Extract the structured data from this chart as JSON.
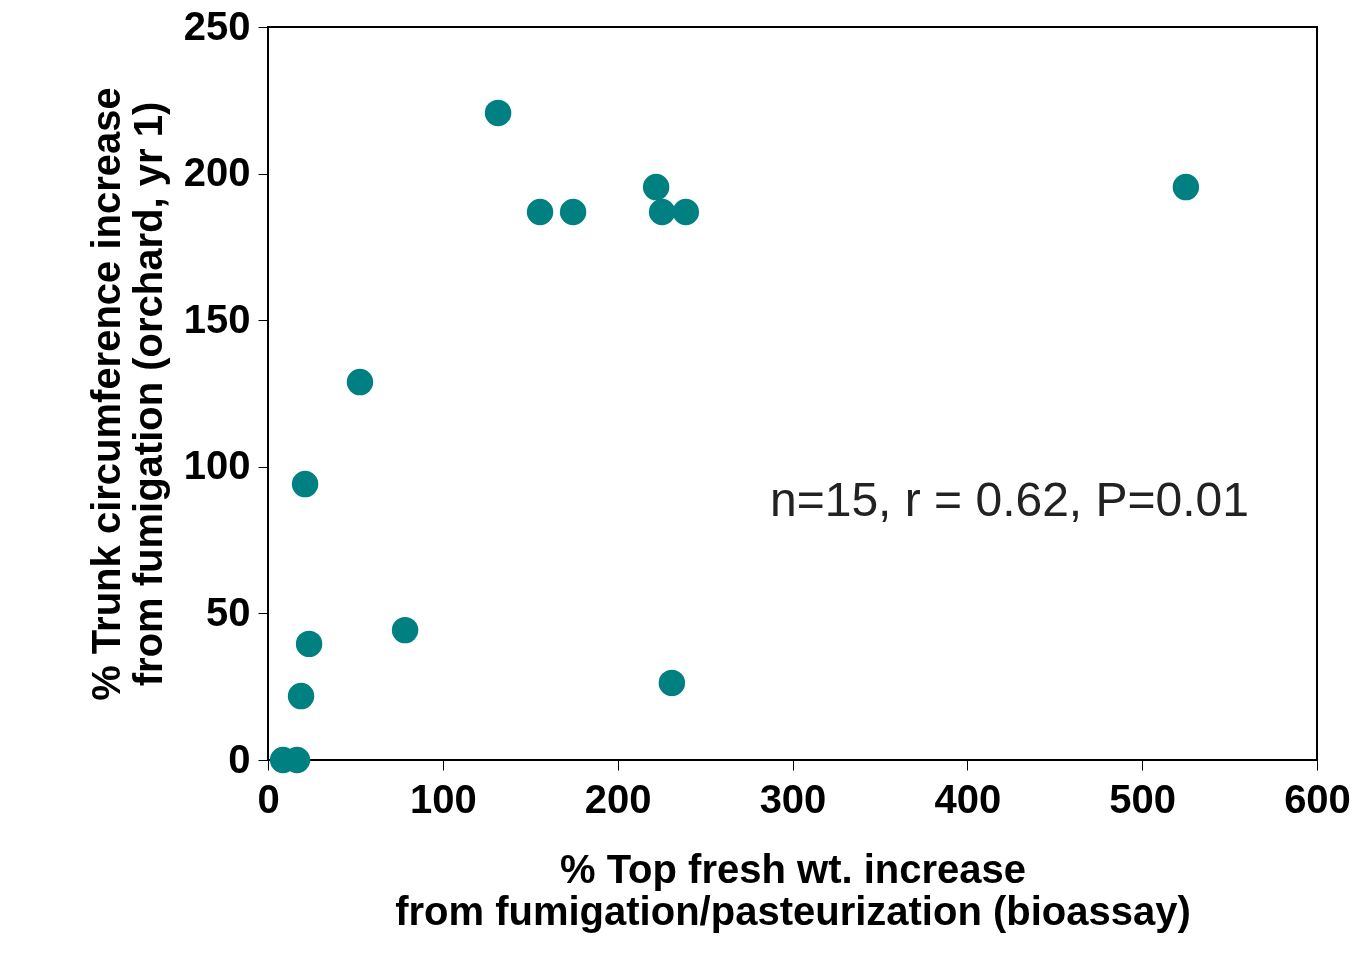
{
  "chart_data": {
    "type": "scatter",
    "xlabel": "% Top fresh wt. increase\nfrom fumigation/pasteurization (bioassay)",
    "ylabel": "% Trunk circumference increase\nfrom fumigation (orchard, yr 1)",
    "annotations": [
      "n=15, r = 0.62, P=0.01"
    ],
    "x": [
      131.6,
      155.6,
      174.5,
      222,
      225.4,
      239,
      525,
      52.6,
      21.2,
      78.4,
      23.5,
      18.9,
      231,
      8.6,
      16.6
    ],
    "series": [
      {
        "color": "#008080",
        "values": [
          220.7,
          186.9,
          186.9,
          195.4,
          186.9,
          186.9,
          195.4,
          128.9,
          94.1,
          44.3,
          39.6,
          21.8,
          26.3,
          0,
          0
        ]
      }
    ],
    "xlim": [
      0,
      600
    ],
    "xticks": [
      0,
      100,
      200,
      300,
      400,
      500,
      600
    ],
    "ylim": [
      0,
      250
    ],
    "yticks": [
      0,
      50,
      100,
      150,
      200,
      250
    ],
    "grid": false,
    "legend": false,
    "marker": "circle"
  }
}
